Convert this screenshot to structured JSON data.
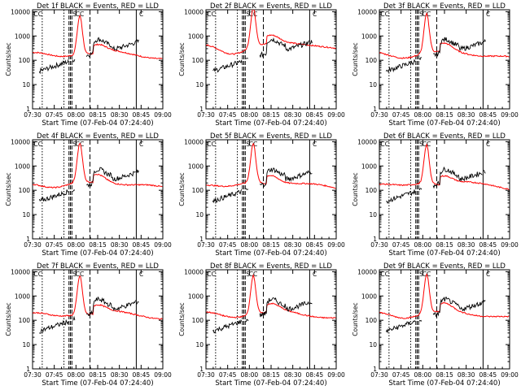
{
  "colors": {
    "events": "#000000",
    "lld": "#ff0000",
    "markers": "#000000"
  },
  "chart_data": [
    {
      "type": "line",
      "title": "Det 1f BLACK = Events, RED = LLD",
      "ylabel": "Counts/sec",
      "xlabel": "Start Time (07-Feb-04 07:24:40)",
      "xticks": [
        "07:30",
        "07:45",
        "08:00",
        "08:15",
        "08:30",
        "08:45",
        "09:00"
      ],
      "xlim_min": [
        5.33,
        95.33
      ],
      "yticks": [
        "1",
        "10",
        "100",
        "1000",
        "10000"
      ],
      "ylim": [
        1,
        12000
      ],
      "scale_y": "log",
      "flag_labels": [
        "CC",
        "S",
        "CC",
        "C"
      ],
      "series": [
        {
          "name": "Events",
          "color": "black"
        },
        {
          "name": "LLD",
          "color": "red"
        }
      ]
    },
    {
      "type": "line",
      "title": "Det 2f BLACK = Events, RED = LLD",
      "ylabel": "Counts/sec",
      "xlabel": "Start Time (07-Feb-04 07:24:40)",
      "xticks": [
        "07:30",
        "07:45",
        "08:00",
        "08:15",
        "08:30",
        "08:45",
        "09:00"
      ],
      "xlim_min": [
        5.33,
        95.33
      ],
      "yticks": [
        "1",
        "10",
        "100",
        "1000",
        "10000"
      ],
      "ylim": [
        1,
        12000
      ],
      "scale_y": "log",
      "flag_labels": [
        "CC",
        "S",
        "CC",
        "C"
      ],
      "series": [
        {
          "name": "Events",
          "color": "black"
        },
        {
          "name": "LLD",
          "color": "red"
        }
      ]
    },
    {
      "type": "line",
      "title": "Det 3f BLACK = Events, RED = LLD",
      "ylabel": "Counts/sec",
      "xlabel": "Start Time (07-Feb-04 07:24:40)",
      "xticks": [
        "07:30",
        "07:45",
        "08:00",
        "08:15",
        "08:30",
        "08:45",
        "09:00"
      ],
      "xlim_min": [
        5.33,
        95.33
      ],
      "yticks": [
        "1",
        "10",
        "100",
        "1000",
        "10000"
      ],
      "ylim": [
        1,
        12000
      ],
      "scale_y": "log",
      "flag_labels": [
        "CC",
        "S",
        "CC",
        "C"
      ],
      "series": [
        {
          "name": "Events",
          "color": "black"
        },
        {
          "name": "LLD",
          "color": "red"
        }
      ]
    },
    {
      "type": "line",
      "title": "Det 4f BLACK = Events, RED = LLD",
      "ylabel": "Counts/sec",
      "xlabel": "Start Time (07-Feb-04 07:24:40)",
      "xticks": [
        "07:30",
        "07:45",
        "08:00",
        "08:15",
        "08:30",
        "08:45",
        "09:00"
      ],
      "xlim_min": [
        5.33,
        95.33
      ],
      "yticks": [
        "1",
        "10",
        "100",
        "1000",
        "10000"
      ],
      "ylim": [
        1,
        12000
      ],
      "scale_y": "log",
      "flag_labels": [
        "CC",
        "S",
        "CC",
        "C"
      ],
      "series": [
        {
          "name": "Events",
          "color": "black"
        },
        {
          "name": "LLD",
          "color": "red"
        }
      ]
    },
    {
      "type": "line",
      "title": "Det 5f BLACK = Events, RED = LLD",
      "ylabel": "Counts/sec",
      "xlabel": "Start Time (07-Feb-04 07:24:40)",
      "xticks": [
        "07:30",
        "07:45",
        "08:00",
        "08:15",
        "08:30",
        "08:45",
        "09:00"
      ],
      "xlim_min": [
        5.33,
        95.33
      ],
      "yticks": [
        "1",
        "10",
        "100",
        "1000",
        "10000"
      ],
      "ylim": [
        1,
        12000
      ],
      "scale_y": "log",
      "flag_labels": [
        "CC",
        "S",
        "CC",
        "C"
      ],
      "series": [
        {
          "name": "Events",
          "color": "black"
        },
        {
          "name": "LLD",
          "color": "red"
        }
      ]
    },
    {
      "type": "line",
      "title": "Det 6f BLACK = Events, RED = LLD",
      "ylabel": "Counts/sec",
      "xlabel": "Start Time (07-Feb-04 07:24:40)",
      "xticks": [
        "07:30",
        "07:45",
        "08:00",
        "08:15",
        "08:30",
        "08:45",
        "09:00"
      ],
      "xlim_min": [
        5.33,
        95.33
      ],
      "yticks": [
        "1",
        "10",
        "100",
        "1000",
        "10000"
      ],
      "ylim": [
        1,
        12000
      ],
      "scale_y": "log",
      "flag_labels": [
        "CC",
        "S",
        "CC",
        "C"
      ],
      "series": [
        {
          "name": "Events",
          "color": "black"
        },
        {
          "name": "LLD",
          "color": "red"
        }
      ]
    },
    {
      "type": "line",
      "title": "Det 7f BLACK = Events, RED = LLD",
      "ylabel": "Counts/sec",
      "xlabel": "Start Time (07-Feb-04 07:24:40)",
      "xticks": [
        "07:30",
        "07:45",
        "08:00",
        "08:15",
        "08:30",
        "08:45",
        "09:00"
      ],
      "xlim_min": [
        5.33,
        95.33
      ],
      "yticks": [
        "1",
        "10",
        "100",
        "1000",
        "10000"
      ],
      "ylim": [
        1,
        12000
      ],
      "scale_y": "log",
      "flag_labels": [
        "CC",
        "S",
        "CC",
        "C"
      ],
      "series": [
        {
          "name": "Events",
          "color": "black"
        },
        {
          "name": "LLD",
          "color": "red"
        }
      ]
    },
    {
      "type": "line",
      "title": "Det 8f BLACK = Events, RED = LLD",
      "ylabel": "Counts/sec",
      "xlabel": "Start Time (07-Feb-04 07:24:40)",
      "xticks": [
        "07:30",
        "07:45",
        "08:00",
        "08:15",
        "08:30",
        "08:45",
        "09:00"
      ],
      "xlim_min": [
        5.33,
        95.33
      ],
      "yticks": [
        "1",
        "10",
        "100",
        "1000",
        "10000"
      ],
      "ylim": [
        1,
        12000
      ],
      "scale_y": "log",
      "flag_labels": [
        "CC",
        "S",
        "CC",
        "C"
      ],
      "series": [
        {
          "name": "Events",
          "color": "black"
        },
        {
          "name": "LLD",
          "color": "red"
        }
      ]
    },
    {
      "type": "line",
      "title": "Det 9f BLACK = Events, RED = LLD",
      "ylabel": "Counts/sec",
      "xlabel": "Start Time (07-Feb-04 07:24:40)",
      "xticks": [
        "07:30",
        "07:45",
        "08:00",
        "08:15",
        "08:30",
        "08:45",
        "09:00"
      ],
      "xlim_min": [
        5.33,
        95.33
      ],
      "yticks": [
        "1",
        "10",
        "100",
        "1000",
        "10000"
      ],
      "ylim": [
        1,
        12000
      ],
      "scale_y": "log",
      "flag_labels": [
        "CC",
        "S",
        "CC",
        "C"
      ],
      "series": [
        {
          "name": "Events",
          "color": "black"
        },
        {
          "name": "LLD",
          "color": "red"
        }
      ]
    }
  ]
}
